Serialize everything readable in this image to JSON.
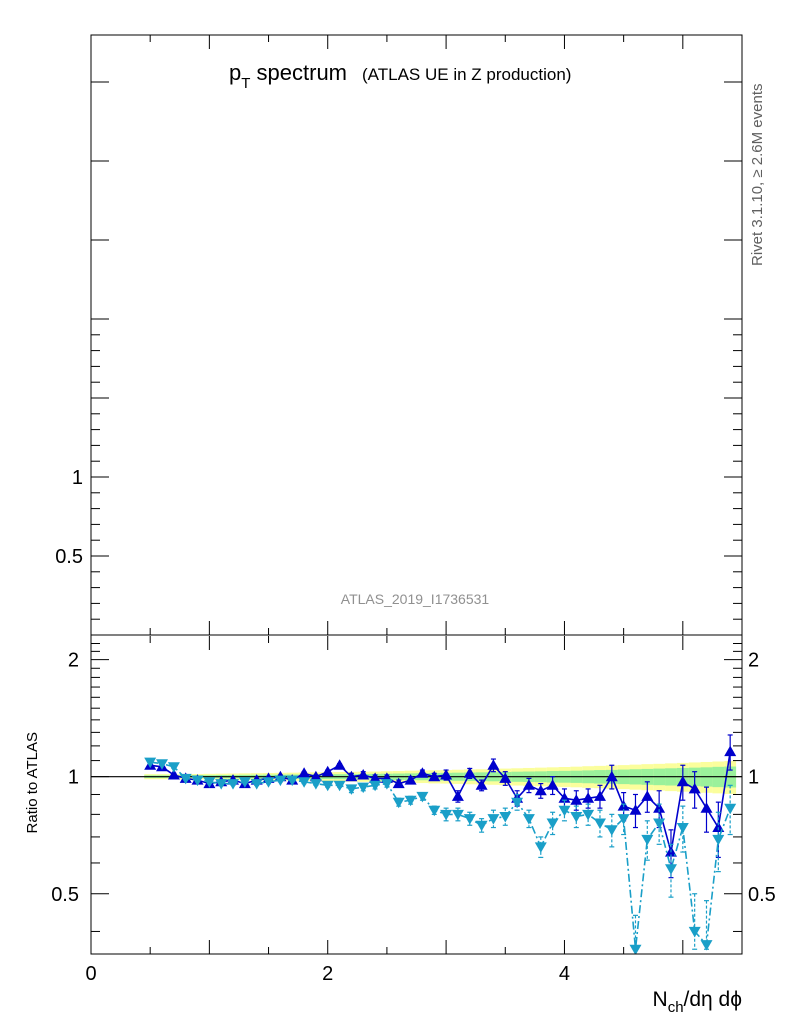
{
  "title": {
    "main": "p",
    "sub": "T",
    "rest": " spectrum",
    "note": "(ATLAS UE in Z production)"
  },
  "analysis_id": "ATLAS_2019_I1736531",
  "side_label": "Rivet 3.1.10, ≥ 2.6M events",
  "xlabel": {
    "n": "N",
    "sub": "ch",
    "rest": "/dη dϕ"
  },
  "ylabel_ratio": "Ratio to ATLAS",
  "chart_data": [
    {
      "panel": "main",
      "type": "line",
      "title": "pT spectrum (ATLAS UE in Z production)",
      "xlim": [
        0,
        5.5
      ],
      "ylim": [
        0,
        3.8
      ],
      "y_tick_labels": [
        {
          "value": 0.5,
          "label": "0.5"
        },
        {
          "value": 1,
          "label": "1"
        }
      ],
      "series": []
    },
    {
      "panel": "ratio",
      "type": "line",
      "ylabel": "Ratio to ATLAS",
      "xlim": [
        0,
        5.5
      ],
      "ylim": [
        0.35,
        2.3
      ],
      "x_tick_labels": [
        {
          "value": 0,
          "label": "0"
        },
        {
          "value": 2,
          "label": "2"
        },
        {
          "value": 4,
          "label": "4"
        }
      ],
      "y_tick_labels": [
        {
          "value": 0.5,
          "label": "0.5"
        },
        {
          "value": 1,
          "label": "1"
        },
        {
          "value": 2,
          "label": "2"
        }
      ],
      "reference_line": 1,
      "x": [
        0.5,
        0.6,
        0.7,
        0.8,
        0.9,
        1.0,
        1.1,
        1.2,
        1.3,
        1.4,
        1.5,
        1.6,
        1.7,
        1.8,
        1.9,
        2.0,
        2.1,
        2.2,
        2.3,
        2.4,
        2.5,
        2.6,
        2.7,
        2.8,
        2.9,
        3.0,
        3.1,
        3.2,
        3.3,
        3.4,
        3.5,
        3.6,
        3.7,
        3.8,
        3.9,
        4.0,
        4.1,
        4.2,
        4.3,
        4.4,
        4.5,
        4.6,
        4.7,
        4.8,
        4.9,
        5.0,
        5.1,
        5.2,
        5.3,
        5.4
      ],
      "data_band": {
        "inner_halfwidth": [
          0.008,
          0.008,
          0.008,
          0.008,
          0.009,
          0.009,
          0.01,
          0.01,
          0.011,
          0.011,
          0.012,
          0.012,
          0.013,
          0.013,
          0.014,
          0.014,
          0.015,
          0.015,
          0.016,
          0.017,
          0.018,
          0.019,
          0.02,
          0.021,
          0.022,
          0.023,
          0.024,
          0.025,
          0.026,
          0.027,
          0.028,
          0.03,
          0.031,
          0.032,
          0.034,
          0.035,
          0.036,
          0.038,
          0.04,
          0.041,
          0.043,
          0.045,
          0.047,
          0.049,
          0.051,
          0.053,
          0.055,
          0.057,
          0.06,
          0.062
        ],
        "outer_halfwidth": [
          0.015,
          0.015,
          0.015,
          0.016,
          0.016,
          0.017,
          0.018,
          0.019,
          0.02,
          0.021,
          0.022,
          0.023,
          0.024,
          0.025,
          0.026,
          0.027,
          0.028,
          0.029,
          0.03,
          0.031,
          0.033,
          0.034,
          0.036,
          0.037,
          0.039,
          0.04,
          0.042,
          0.044,
          0.045,
          0.047,
          0.049,
          0.051,
          0.053,
          0.055,
          0.057,
          0.059,
          0.061,
          0.064,
          0.066,
          0.069,
          0.071,
          0.074,
          0.077,
          0.079,
          0.082,
          0.085,
          0.088,
          0.091,
          0.094,
          0.097
        ]
      },
      "series": [
        {
          "color": "#0000cc",
          "marker": "triangle-up",
          "line": "solid",
          "y": [
            1.07,
            1.06,
            1.01,
            0.99,
            0.98,
            0.96,
            0.97,
            0.98,
            0.96,
            0.98,
            0.99,
            1.0,
            0.98,
            1.02,
            1.0,
            1.03,
            1.07,
            1.0,
            1.01,
            0.99,
            0.99,
            0.96,
            0.98,
            1.02,
            1.0,
            1.01,
            0.89,
            1.02,
            0.95,
            1.07,
            0.99,
            0.88,
            0.95,
            0.92,
            0.95,
            0.88,
            0.87,
            0.88,
            0.89,
            1.0,
            0.84,
            0.82,
            0.89,
            0.83,
            0.64,
            0.97,
            0.93,
            0.83,
            0.74,
            1.16
          ],
          "err": [
            0.01,
            0.01,
            0.01,
            0.01,
            0.01,
            0.01,
            0.01,
            0.01,
            0.01,
            0.01,
            0.01,
            0.01,
            0.01,
            0.01,
            0.01,
            0.01,
            0.01,
            0.02,
            0.02,
            0.02,
            0.02,
            0.02,
            0.02,
            0.02,
            0.02,
            0.03,
            0.03,
            0.03,
            0.03,
            0.04,
            0.04,
            0.04,
            0.04,
            0.04,
            0.05,
            0.05,
            0.05,
            0.05,
            0.06,
            0.07,
            0.07,
            0.08,
            0.08,
            0.09,
            0.09,
            0.1,
            0.1,
            0.11,
            0.12,
            0.12
          ]
        },
        {
          "color": "#1a9fc8",
          "marker": "triangle-down",
          "line": "dash-dot",
          "y": [
            1.09,
            1.08,
            1.06,
            0.99,
            0.98,
            0.97,
            0.96,
            0.96,
            0.97,
            0.96,
            0.97,
            0.98,
            0.98,
            0.97,
            0.96,
            0.95,
            0.95,
            0.93,
            0.94,
            0.95,
            0.96,
            0.86,
            0.87,
            0.89,
            0.82,
            0.8,
            0.8,
            0.78,
            0.75,
            0.78,
            0.79,
            0.86,
            0.78,
            0.66,
            0.76,
            0.82,
            0.79,
            0.8,
            0.76,
            0.73,
            0.78,
            0.36,
            0.69,
            0.76,
            0.58,
            0.74,
            0.4,
            0.37,
            0.69,
            0.83
          ],
          "err": [
            0.01,
            0.01,
            0.01,
            0.01,
            0.01,
            0.01,
            0.01,
            0.01,
            0.01,
            0.01,
            0.01,
            0.01,
            0.01,
            0.01,
            0.01,
            0.01,
            0.01,
            0.02,
            0.02,
            0.02,
            0.02,
            0.02,
            0.02,
            0.02,
            0.02,
            0.03,
            0.03,
            0.03,
            0.03,
            0.04,
            0.04,
            0.04,
            0.04,
            0.04,
            0.05,
            0.05,
            0.05,
            0.05,
            0.06,
            0.07,
            0.07,
            0.08,
            0.08,
            0.09,
            0.09,
            0.1,
            0.1,
            0.11,
            0.12,
            0.12
          ]
        }
      ]
    }
  ],
  "colors": {
    "band_outer": "#fbfe9c",
    "band_inner": "#9bf19b",
    "series_1": "#0000cc",
    "series_2": "#1a9fc8",
    "frame": "#000000",
    "analysis_label": "#909090",
    "side_label": "#606060"
  }
}
